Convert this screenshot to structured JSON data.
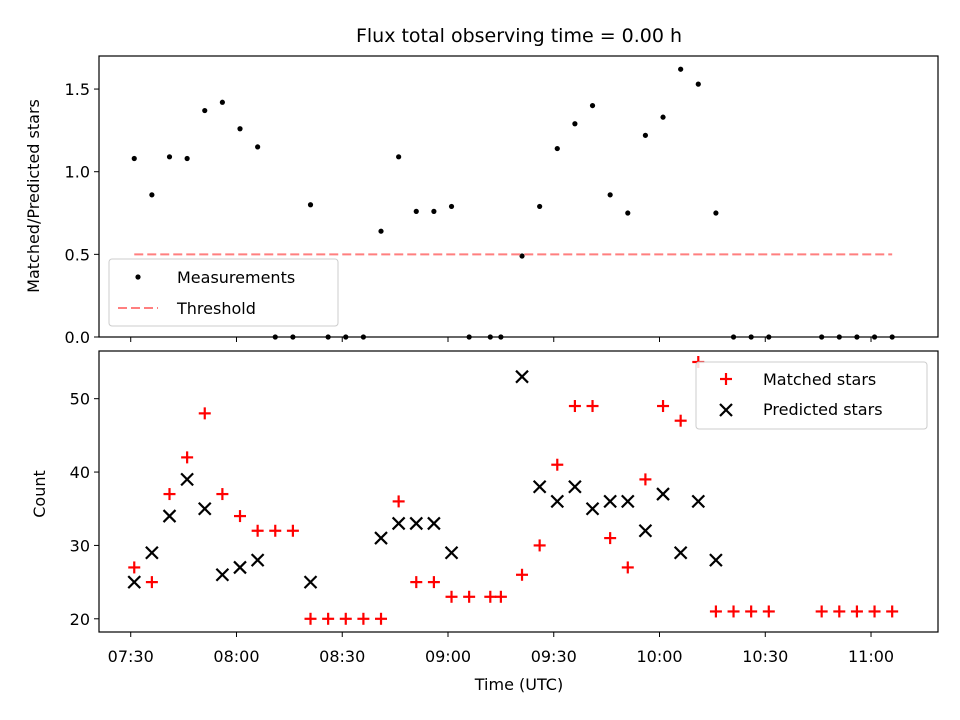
{
  "chart_data": [
    {
      "type": "scatter",
      "title": "Flux total observing time = 0.00 h",
      "xlabel": "",
      "ylabel": "Matched/Predicted stars",
      "xlim": [
        "07:21",
        "11:19"
      ],
      "ylim": [
        0,
        1.7
      ],
      "yticks": [
        "0.0",
        "0.5",
        "1.0",
        "1.5"
      ],
      "grid": false,
      "legend_position": "lower-left",
      "series": [
        {
          "name": "Measurements",
          "marker": "dot",
          "color": "#000000",
          "x": [
            "07:31",
            "07:36",
            "07:41",
            "07:46",
            "07:51",
            "07:56",
            "08:01",
            "08:06",
            "08:11",
            "08:16",
            "08:21",
            "08:26",
            "08:31",
            "08:36",
            "08:41",
            "08:46",
            "08:51",
            "08:56",
            "09:01",
            "09:06",
            "09:12",
            "09:15",
            "09:21",
            "09:26",
            "09:31",
            "09:36",
            "09:41",
            "09:46",
            "09:51",
            "09:56",
            "10:01",
            "10:06",
            "10:11",
            "10:16",
            "10:21",
            "10:26",
            "10:31",
            "10:46",
            "10:51",
            "10:56",
            "11:01",
            "11:06"
          ],
          "y": [
            1.08,
            0.86,
            1.09,
            1.08,
            1.37,
            1.42,
            1.26,
            1.15,
            0.0,
            0.0,
            0.8,
            0.0,
            0.0,
            0.0,
            0.64,
            1.09,
            0.76,
            0.76,
            0.79,
            0.0,
            0.0,
            0.0,
            0.49,
            0.79,
            1.14,
            1.29,
            1.4,
            0.86,
            0.75,
            1.22,
            1.33,
            1.62,
            1.53,
            0.75,
            0.0,
            0.0,
            0.0,
            0.0,
            0.0,
            0.0,
            0.0,
            0.0
          ]
        },
        {
          "name": "Threshold",
          "marker": "dashed-line",
          "color": "#ff7f7f",
          "x": [
            "07:31",
            "11:06"
          ],
          "y": [
            0.5,
            0.5
          ]
        }
      ]
    },
    {
      "type": "scatter",
      "title": "",
      "xlabel": "Time (UTC)",
      "ylabel": "Count",
      "xlim": [
        "07:21",
        "11:19"
      ],
      "ylim": [
        18.2,
        56.5
      ],
      "yticks": [
        "20",
        "30",
        "40",
        "50"
      ],
      "xticks": [
        "07:30",
        "08:00",
        "08:30",
        "09:00",
        "09:30",
        "10:00",
        "10:30",
        "11:00"
      ],
      "grid": false,
      "legend_position": "top-right",
      "series": [
        {
          "name": "Matched stars",
          "marker": "plus",
          "color": "#ff0000",
          "x": [
            "07:31",
            "07:36",
            "07:41",
            "07:46",
            "07:51",
            "07:56",
            "08:01",
            "08:06",
            "08:11",
            "08:16",
            "08:21",
            "08:26",
            "08:31",
            "08:36",
            "08:41",
            "08:46",
            "08:51",
            "08:56",
            "09:01",
            "09:06",
            "09:12",
            "09:15",
            "09:21",
            "09:26",
            "09:31",
            "09:36",
            "09:41",
            "09:46",
            "09:51",
            "09:56",
            "10:01",
            "10:06",
            "10:11",
            "10:16",
            "10:21",
            "10:26",
            "10:31",
            "10:46",
            "10:51",
            "10:56",
            "11:01",
            "11:06"
          ],
          "y": [
            27,
            25,
            37,
            42,
            48,
            37,
            34,
            32,
            32,
            32,
            20,
            20,
            20,
            20,
            20,
            36,
            25,
            25,
            23,
            23,
            23,
            23,
            26,
            30,
            41,
            49,
            49,
            31,
            27,
            39,
            49,
            47,
            55,
            21,
            21,
            21,
            21,
            21,
            21,
            21,
            21,
            21
          ]
        },
        {
          "name": "Predicted stars",
          "marker": "x",
          "color": "#000000",
          "x": [
            "07:31",
            "07:36",
            "07:41",
            "07:46",
            "07:51",
            "07:56",
            "08:01",
            "08:06",
            "08:21",
            "08:41",
            "08:46",
            "08:51",
            "08:56",
            "09:01",
            "09:21",
            "09:26",
            "09:31",
            "09:36",
            "09:41",
            "09:46",
            "09:51",
            "09:56",
            "10:01",
            "10:06",
            "10:11",
            "10:16"
          ],
          "y": [
            25,
            29,
            34,
            39,
            35,
            26,
            27,
            28,
            25,
            31,
            33,
            33,
            33,
            29,
            53,
            38,
            36,
            38,
            35,
            36,
            36,
            32,
            37,
            29,
            36,
            28
          ]
        }
      ]
    }
  ]
}
